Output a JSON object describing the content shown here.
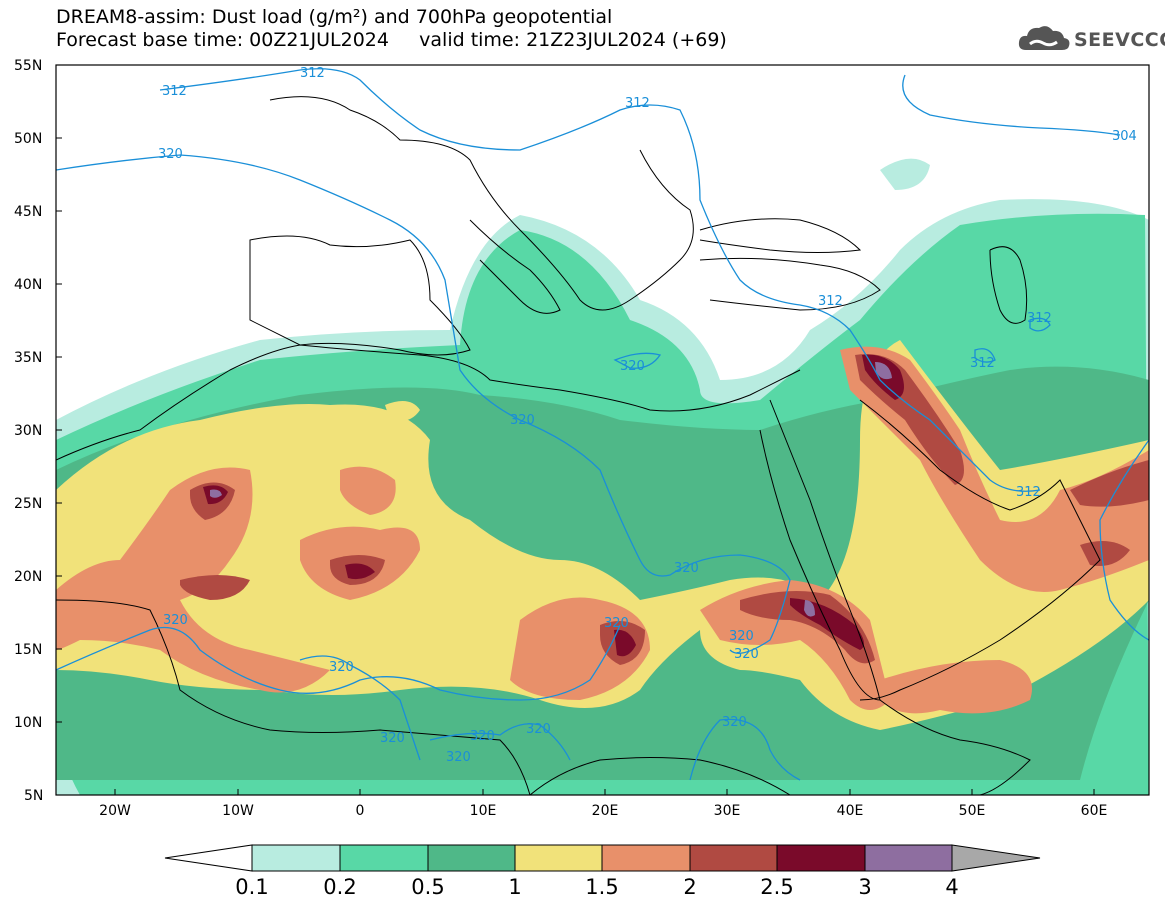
{
  "title": {
    "line1": "DREAM8-assim: Dust load (g/m²) and 700hPa geopotential",
    "line2": "Forecast base time: 00Z21JUL2024     valid time: 21Z23JUL2024 (+69)"
  },
  "logo": {
    "text": "SEEVCCC",
    "icon": "cloud-icon"
  },
  "map": {
    "lat_labels": [
      "55N",
      "50N",
      "45N",
      "40N",
      "35N",
      "30N",
      "25N",
      "20N",
      "15N",
      "10N",
      "5N"
    ],
    "lon_labels": [
      "20W",
      "10W",
      "0",
      "10E",
      "20E",
      "30E",
      "40E",
      "50E",
      "60E"
    ],
    "contour_labels": [
      "312",
      "312",
      "320",
      "312",
      "304",
      "312",
      "312",
      "312",
      "320",
      "320",
      "312",
      "320",
      "320",
      "320",
      "320",
      "320",
      "320",
      "320",
      "320",
      "320",
      "320",
      "320"
    ]
  },
  "colorbar": {
    "labels": [
      "0.1",
      "0.2",
      "0.5",
      "1",
      "1.5",
      "2",
      "2.5",
      "3",
      "4"
    ],
    "colors": [
      "#b8ece0",
      "#58d8a6",
      "#4fb888",
      "#f1e27a",
      "#e8906a",
      "#b04a42",
      "#7a0a2a",
      "#8e6ea0",
      "#a8a8a8"
    ]
  },
  "colors": {
    "c01": "#b8ece0",
    "c02": "#58d8a6",
    "c05": "#4fb888",
    "c1": "#f1e27a",
    "c15": "#e8906a",
    "c2": "#b04a42",
    "c25": "#7a0a2a",
    "c3": "#8e6ea0",
    "contour": "#1a8fd8"
  }
}
